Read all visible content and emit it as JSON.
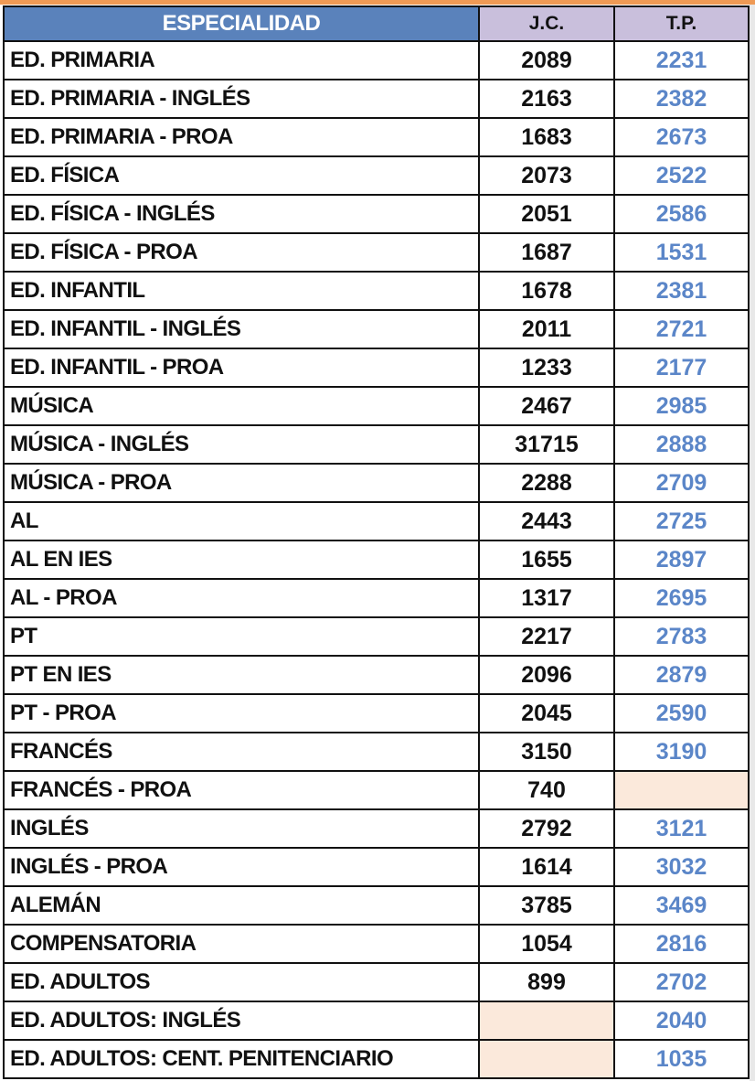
{
  "colors": {
    "header_blue": "#5a82bb",
    "header_lavender": "#c9bfdc",
    "tp_text": "#5b86c8",
    "empty_cell": "#fbe9db",
    "top_bar": "#ef9a55"
  },
  "headers": {
    "especialidad": "ESPECIALIDAD",
    "jc": "J.C.",
    "tp": "T.P."
  },
  "rows": [
    {
      "name": "ED. PRIMARIA",
      "jc": "2089",
      "tp": "2231"
    },
    {
      "name": "ED. PRIMARIA - INGLÉS",
      "jc": "2163",
      "tp": "2382"
    },
    {
      "name": "ED. PRIMARIA - PROA",
      "jc": "1683",
      "tp": "2673"
    },
    {
      "name": "ED. FÍSICA",
      "jc": "2073",
      "tp": "2522"
    },
    {
      "name": "ED. FÍSICA - INGLÉS",
      "jc": "2051",
      "tp": "2586"
    },
    {
      "name": "ED. FÍSICA - PROA",
      "jc": "1687",
      "tp": "1531"
    },
    {
      "name": "ED. INFANTIL",
      "jc": "1678",
      "tp": "2381"
    },
    {
      "name": "ED. INFANTIL - INGLÉS",
      "jc": "2011",
      "tp": "2721"
    },
    {
      "name": "ED. INFANTIL - PROA",
      "jc": "1233",
      "tp": "2177"
    },
    {
      "name": "MÚSICA",
      "jc": "2467",
      "tp": "2985"
    },
    {
      "name": "MÚSICA - INGLÉS",
      "jc": "31715",
      "tp": "2888"
    },
    {
      "name": "MÚSICA - PROA",
      "jc": "2288",
      "tp": "2709"
    },
    {
      "name": "AL",
      "jc": "2443",
      "tp": "2725"
    },
    {
      "name": "AL EN IES",
      "jc": "1655",
      "tp": "2897"
    },
    {
      "name": "AL - PROA",
      "jc": "1317",
      "tp": "2695"
    },
    {
      "name": "PT",
      "jc": "2217",
      "tp": "2783"
    },
    {
      "name": "PT EN IES",
      "jc": "2096",
      "tp": "2879"
    },
    {
      "name": "PT - PROA",
      "jc": "2045",
      "tp": "2590"
    },
    {
      "name": "FRANCÉS",
      "jc": "3150",
      "tp": "3190"
    },
    {
      "name": "FRANCÉS - PROA",
      "jc": "740",
      "tp": ""
    },
    {
      "name": "INGLÉS",
      "jc": "2792",
      "tp": "3121"
    },
    {
      "name": "INGLÉS - PROA",
      "jc": "1614",
      "tp": "3032"
    },
    {
      "name": "ALEMÁN",
      "jc": "3785",
      "tp": "3469"
    },
    {
      "name": "COMPENSATORIA",
      "jc": "1054",
      "tp": "2816"
    },
    {
      "name": "ED. ADULTOS",
      "jc": "899",
      "tp": "2702"
    },
    {
      "name": "ED. ADULTOS: INGLÉS",
      "jc": "",
      "tp": "2040"
    },
    {
      "name": "ED. ADULTOS: CENT. PENITENCIARIO",
      "jc": "",
      "tp": "1035"
    }
  ]
}
